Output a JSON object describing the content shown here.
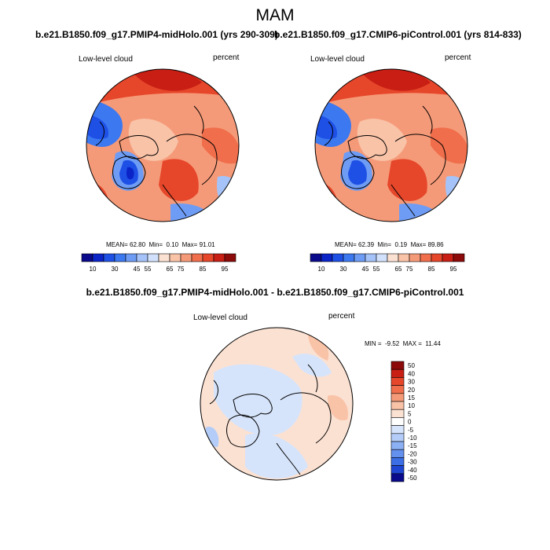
{
  "header": {
    "season": "MAM",
    "left_case": "b.e21.B1850.f09_g17.PMIP4-midHolo.001 (yrs 290-309)",
    "right_case": "b.e21.B1850.f09_g17.CMIP6-piControl.001 (yrs 814-833)",
    "diff_title": "b.e21.B1850.f09_g17.PMIP4-midHolo.001 - b.e21.B1850.f09_g17.CMIP6-piControl.001"
  },
  "maps": [
    {
      "name": "Low-level cloud",
      "units": "percent",
      "stats": {
        "mean_label": "MEAN=",
        "mean": "62.80",
        "min_label": "Min=",
        "min": "0.10",
        "max_label": "Max=",
        "max": "91.01"
      }
    },
    {
      "name": "Low-level cloud",
      "units": "percent",
      "stats": {
        "mean_label": "MEAN=",
        "mean": "62.39",
        "min_label": "Min=",
        "min": "0.19",
        "max_label": "Max=",
        "max": "89.86"
      }
    },
    {
      "name": "Low-level cloud",
      "units": "percent",
      "stats": {
        "min_label": "MIN =",
        "min": "-9.52",
        "max_label": "MAX =",
        "max": "11.44"
      }
    }
  ],
  "colorbar_abs": {
    "ticks": [
      "10",
      "30",
      "45",
      "55",
      "65",
      "75",
      "85",
      "95"
    ],
    "colors": [
      "#0a0a8c",
      "#0b24c8",
      "#1e50e6",
      "#3c78f0",
      "#6e9cf5",
      "#a5c3f8",
      "#d2e1fb",
      "#fbe1d2",
      "#f9c3a8",
      "#f59a78",
      "#f06e4b",
      "#e6462a",
      "#c81e14",
      "#8c0a0a"
    ]
  },
  "colorbar_diff": {
    "ticks": [
      "50",
      "40",
      "30",
      "20",
      "15",
      "10",
      "5",
      "0",
      "-5",
      "-10",
      "-15",
      "-20",
      "-30",
      "-40",
      "-50"
    ],
    "colors": [
      "#8c0a0a",
      "#c81e14",
      "#e6462a",
      "#f06e4b",
      "#f59a78",
      "#f9c3a8",
      "#fbe1d2",
      "#ffffff",
      "#d6e4fb",
      "#b4cdf8",
      "#8cb0f4",
      "#6490ee",
      "#3c6ee6",
      "#1e46d2",
      "#0a0a8c"
    ]
  }
}
